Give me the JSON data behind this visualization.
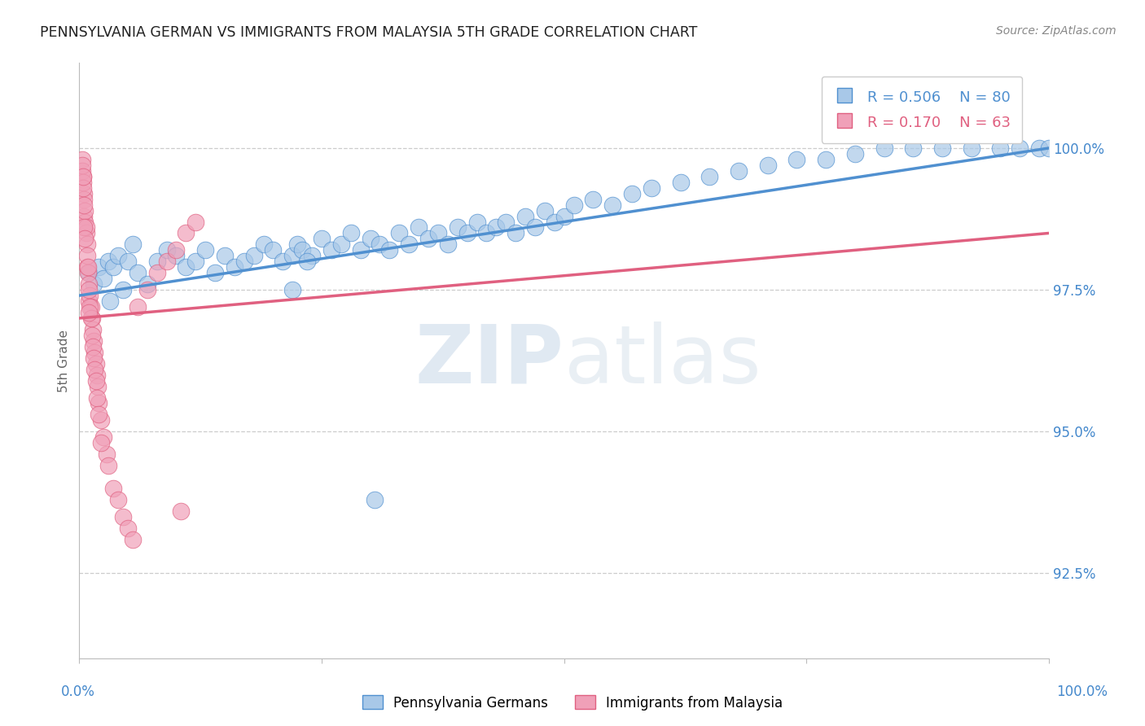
{
  "title": "PENNSYLVANIA GERMAN VS IMMIGRANTS FROM MALAYSIA 5TH GRADE CORRELATION CHART",
  "source": "Source: ZipAtlas.com",
  "ylabel": "5th Grade",
  "y_ticks": [
    92.5,
    95.0,
    97.5,
    100.0
  ],
  "y_tick_labels": [
    "92.5%",
    "95.0%",
    "97.5%",
    "100.0%"
  ],
  "x_range": [
    0,
    100
  ],
  "y_range": [
    91.0,
    101.5
  ],
  "blue_R": 0.506,
  "blue_N": 80,
  "pink_R": 0.17,
  "pink_N": 63,
  "blue_color": "#a8c8e8",
  "blue_edge_color": "#5090d0",
  "pink_color": "#f0a0b8",
  "pink_edge_color": "#e06080",
  "legend_blue_label": "Pennsylvania Germans",
  "legend_pink_label": "Immigrants from Malaysia",
  "watermark_zip": "ZIP",
  "watermark_atlas": "atlas",
  "blue_trend_start_y": 97.4,
  "blue_trend_end_y": 100.0,
  "pink_trend_start_y": 97.0,
  "pink_trend_end_y": 98.5,
  "blue_x": [
    1.0,
    1.5,
    2.0,
    2.5,
    3.0,
    3.5,
    4.0,
    5.0,
    6.0,
    7.0,
    8.0,
    9.0,
    10.0,
    11.0,
    12.0,
    13.0,
    14.0,
    15.0,
    16.0,
    17.0,
    18.0,
    19.0,
    20.0,
    21.0,
    22.0,
    22.5,
    23.0,
    24.0,
    25.0,
    26.0,
    27.0,
    28.0,
    29.0,
    30.0,
    31.0,
    32.0,
    33.0,
    34.0,
    35.0,
    36.0,
    37.0,
    38.0,
    39.0,
    40.0,
    41.0,
    42.0,
    43.0,
    44.0,
    45.0,
    46.0,
    47.0,
    48.0,
    49.0,
    50.0,
    51.0,
    53.0,
    55.0,
    57.0,
    59.0,
    62.0,
    65.0,
    68.0,
    71.0,
    74.0,
    77.0,
    80.0,
    83.0,
    86.0,
    89.0,
    92.0,
    95.0,
    97.0,
    99.0,
    100.0,
    3.2,
    4.5,
    5.5,
    22.0,
    23.5,
    30.5
  ],
  "blue_y": [
    97.8,
    97.6,
    97.9,
    97.7,
    98.0,
    97.9,
    98.1,
    98.0,
    97.8,
    97.6,
    98.0,
    98.2,
    98.1,
    97.9,
    98.0,
    98.2,
    97.8,
    98.1,
    97.9,
    98.0,
    98.1,
    98.3,
    98.2,
    98.0,
    98.1,
    98.3,
    98.2,
    98.1,
    98.4,
    98.2,
    98.3,
    98.5,
    98.2,
    98.4,
    98.3,
    98.2,
    98.5,
    98.3,
    98.6,
    98.4,
    98.5,
    98.3,
    98.6,
    98.5,
    98.7,
    98.5,
    98.6,
    98.7,
    98.5,
    98.8,
    98.6,
    98.9,
    98.7,
    98.8,
    99.0,
    99.1,
    99.0,
    99.2,
    99.3,
    99.4,
    99.5,
    99.6,
    99.7,
    99.8,
    99.8,
    99.9,
    100.0,
    100.0,
    100.0,
    100.0,
    100.0,
    100.0,
    100.0,
    100.0,
    97.3,
    97.5,
    98.3,
    97.5,
    98.0,
    93.8
  ],
  "pink_x": [
    0.3,
    0.4,
    0.5,
    0.5,
    0.6,
    0.7,
    0.8,
    0.8,
    0.9,
    1.0,
    1.0,
    1.1,
    1.2,
    1.3,
    1.4,
    1.5,
    1.6,
    1.7,
    1.8,
    1.9,
    2.0,
    2.2,
    2.5,
    2.8,
    3.0,
    3.5,
    4.0,
    4.5,
    5.0,
    5.5,
    6.0,
    7.0,
    8.0,
    9.0,
    10.0,
    11.0,
    12.0,
    0.3,
    0.4,
    0.5,
    0.6,
    0.7,
    0.8,
    0.9,
    1.0,
    1.1,
    1.2,
    1.3,
    0.4,
    0.5,
    1.0,
    1.4,
    1.5,
    1.6,
    1.7,
    1.8,
    0.3,
    0.35,
    0.45,
    0.55,
    2.2,
    2.0,
    10.5
  ],
  "pink_y": [
    99.8,
    99.5,
    99.2,
    98.8,
    98.7,
    98.5,
    98.3,
    97.9,
    97.8,
    97.6,
    97.3,
    97.4,
    97.2,
    97.0,
    96.8,
    96.6,
    96.4,
    96.2,
    96.0,
    95.8,
    95.5,
    95.2,
    94.9,
    94.6,
    94.4,
    94.0,
    93.8,
    93.5,
    93.3,
    93.1,
    97.2,
    97.5,
    97.8,
    98.0,
    98.2,
    98.5,
    98.7,
    99.6,
    99.4,
    99.1,
    98.9,
    98.6,
    98.1,
    97.9,
    97.5,
    97.2,
    97.0,
    96.7,
    99.3,
    98.6,
    97.1,
    96.5,
    96.3,
    96.1,
    95.9,
    95.6,
    99.7,
    99.5,
    99.0,
    98.4,
    94.8,
    95.3,
    93.6
  ]
}
